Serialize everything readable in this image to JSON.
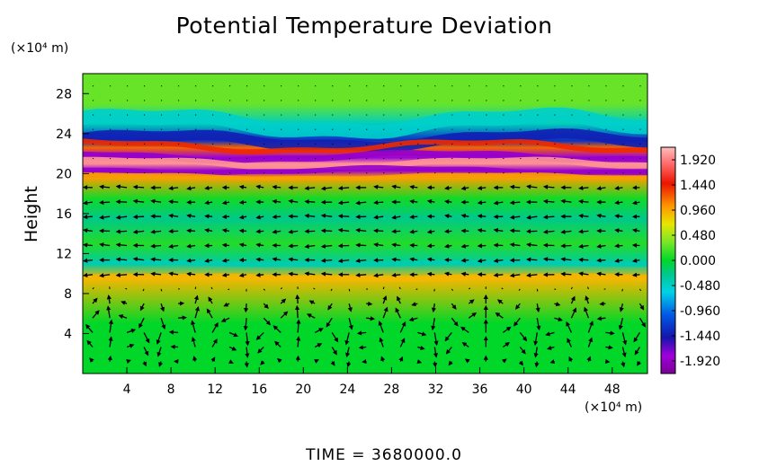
{
  "chart_data": {
    "type": "heatmap",
    "title": "Potential Temperature Deviation",
    "ylabel": "Height",
    "y_unit_label": "(×10⁴ m)",
    "x_unit_label": "(×10⁴ m)",
    "footer": "TIME = 3680000.0",
    "x_ticks": [
      "4",
      "8",
      "12",
      "16",
      "20",
      "24",
      "28",
      "32",
      "36",
      "40",
      "44",
      "48"
    ],
    "x_tick_values": [
      4,
      8,
      12,
      16,
      20,
      24,
      28,
      32,
      36,
      40,
      44,
      48
    ],
    "y_ticks": [
      "4",
      "8",
      "12",
      "16",
      "20",
      "24",
      "28"
    ],
    "y_tick_values": [
      4,
      8,
      12,
      16,
      20,
      24,
      28
    ],
    "xlim": [
      0,
      51.2
    ],
    "ylim": [
      0,
      30
    ],
    "colorbar_labels": [
      "1.920",
      "1.440",
      "0.960",
      "0.480",
      "0.000",
      "-0.480",
      "-0.960",
      "-1.440",
      "-1.920"
    ],
    "colorbar_values": [
      1.92,
      1.44,
      0.96,
      0.48,
      0.0,
      -0.48,
      -0.96,
      -1.44,
      -1.92
    ],
    "colorbar_range": [
      -2.16,
      2.16
    ],
    "bands": [
      {
        "y": 27.0,
        "value": 0.3
      },
      {
        "y": 25.0,
        "value": -0.45
      },
      {
        "y": 23.3,
        "value": -1.3
      },
      {
        "y": 22.6,
        "value": 1.2
      },
      {
        "y": 21.6,
        "value": -1.8
      },
      {
        "y": 21.0,
        "value": 2.0
      },
      {
        "y": 20.3,
        "value": -1.9
      },
      {
        "y": 19.6,
        "value": 1.0
      },
      {
        "y": 17.5,
        "value": 0.05
      },
      {
        "y": 15.5,
        "value": -0.25
      },
      {
        "y": 13.0,
        "value": 0.1
      },
      {
        "y": 11.0,
        "value": -0.35
      },
      {
        "y": 9.5,
        "value": 0.9
      },
      {
        "y": 5.0,
        "value": 0.0
      }
    ],
    "vector_field": "wind vectors; rolling circulation cells below 9×10⁴ m, mostly leftward flow between 9 and 20×10⁴ m"
  }
}
